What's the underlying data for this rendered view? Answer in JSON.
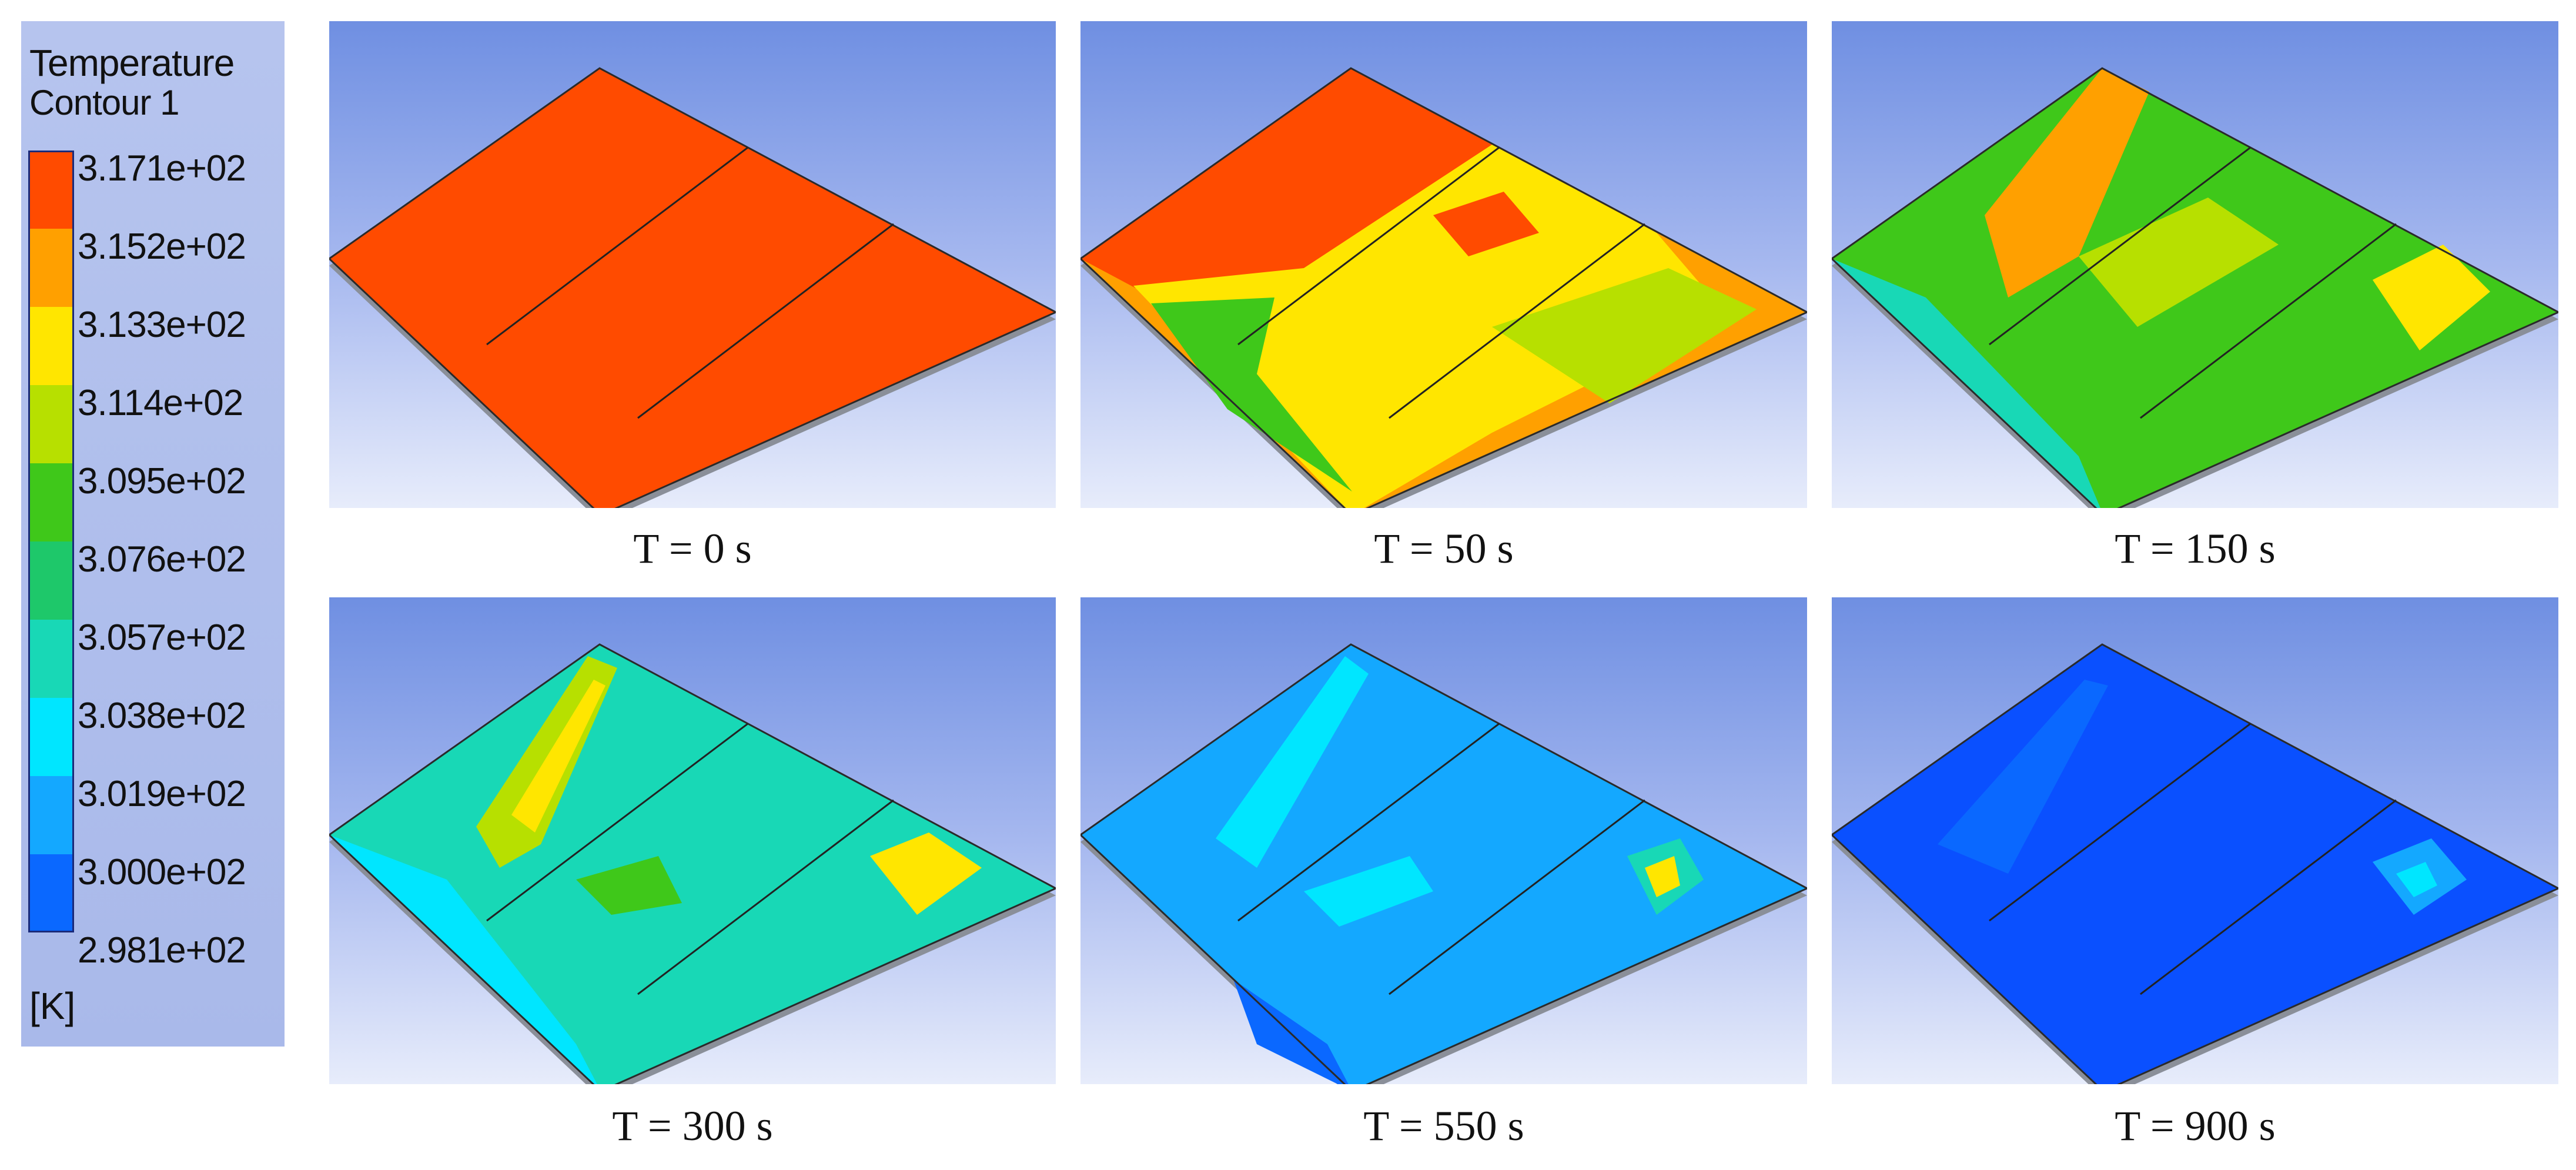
{
  "legend": {
    "title_line1": "Temperature",
    "title_line2": "Contour 1",
    "unit": "[K]",
    "ticks": [
      "3.171e+02",
      "3.152e+02",
      "3.133e+02",
      "3.114e+02",
      "3.095e+02",
      "3.076e+02",
      "3.057e+02",
      "3.038e+02",
      "3.019e+02",
      "3.000e+02",
      "2.981e+02"
    ],
    "colors": [
      "#ff4b00",
      "#ffa000",
      "#ffe600",
      "#b7e000",
      "#3fc81a",
      "#1ec86a",
      "#18d8b6",
      "#00e6ff",
      "#14a8ff",
      "#0a68ff",
      "#0033ee"
    ]
  },
  "panels": [
    {
      "caption": "T = 0 s",
      "plate_color": "#ff4b00"
    },
    {
      "caption": "T = 50 s",
      "plate_color": "#ffa000"
    },
    {
      "caption": "T = 150 s",
      "plate_color": "#3fc81a"
    },
    {
      "caption": "T = 300 s",
      "plate_color": "#18d8b6"
    },
    {
      "caption": "T = 550 s",
      "plate_color": "#14a8ff"
    },
    {
      "caption": "T = 900 s",
      "plate_color": "#0a50ff"
    }
  ]
}
